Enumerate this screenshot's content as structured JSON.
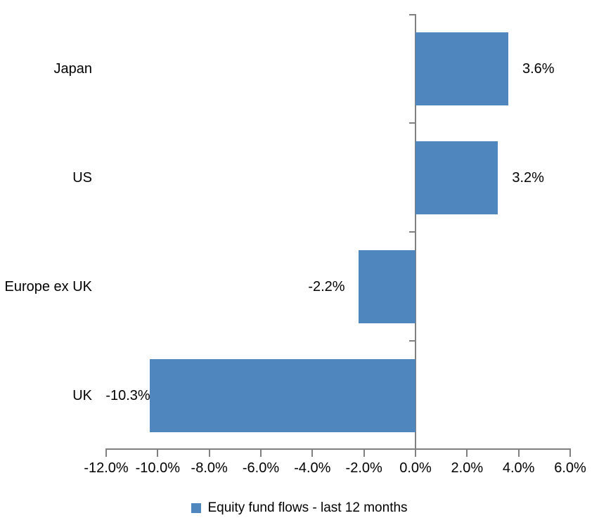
{
  "chart_data": {
    "type": "bar",
    "orientation": "horizontal",
    "categories": [
      "Japan",
      "US",
      "Europe ex UK",
      "UK"
    ],
    "series": [
      {
        "name": "Equity fund flows - last 12 months",
        "values": [
          3.6,
          3.2,
          -2.2,
          -10.3
        ],
        "data_labels": [
          "3.6%",
          "3.2%",
          "-2.2%",
          "-10.3%"
        ]
      }
    ],
    "xlim": [
      -12,
      6
    ],
    "x_ticks": [
      {
        "value": -12,
        "label": "-12.0%"
      },
      {
        "value": -10,
        "label": "-10.0%"
      },
      {
        "value": -8,
        "label": "-8.0%"
      },
      {
        "value": -6,
        "label": "-6.0%"
      },
      {
        "value": -4,
        "label": "-4.0%"
      },
      {
        "value": -2,
        "label": "-2.0%"
      },
      {
        "value": 0,
        "label": "0.0%"
      },
      {
        "value": 2,
        "label": "2.0%"
      },
      {
        "value": 4,
        "label": "4.0%"
      },
      {
        "value": 6,
        "label": "6.0%"
      }
    ],
    "grid": false,
    "legend": {
      "position": "bottom",
      "label": "Equity fund flows - last 12 months"
    },
    "colors": {
      "bar": "#4e86bd",
      "axis": "#808080",
      "text": "#000000",
      "background": "#ffffff"
    }
  }
}
